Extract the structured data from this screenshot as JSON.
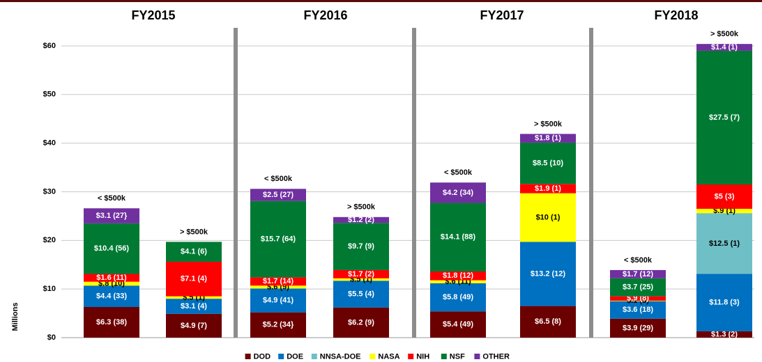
{
  "chart_data": {
    "type": "stacked-bar",
    "groups": [
      "FY2015",
      "FY2016",
      "FY2017",
      "FY2018"
    ],
    "categories": [
      "< $500k",
      "> $500k",
      "< $500k",
      "> $500k",
      "< $500k",
      "> $500k",
      "< $500k",
      "> $500k"
    ],
    "y_label": "Millions",
    "ylim": [
      0,
      63
    ],
    "yticks": [
      {
        "value": 0,
        "label": "$0"
      },
      {
        "value": 10,
        "label": "$10"
      },
      {
        "value": 20,
        "label": "$20"
      },
      {
        "value": 30,
        "label": "$30"
      },
      {
        "value": 40,
        "label": "$40"
      },
      {
        "value": 50,
        "label": "$50"
      },
      {
        "value": 60,
        "label": "$60"
      }
    ],
    "grid": true,
    "legend": "bottom",
    "series": [
      {
        "name": "DOD",
        "color": "#6b0000",
        "values": [
          6.3,
          4.9,
          5.2,
          6.2,
          5.4,
          6.5,
          3.9,
          1.3
        ],
        "value_labels": [
          "$6.3 (38)",
          "$4.9 (7)",
          "$5.2 (34}",
          "$6.2 (9)",
          "$5.4  (49)",
          "$6.5 (8)",
          "$3.9 (29)",
          "$1.3 (2)"
        ]
      },
      {
        "name": "DOE",
        "color": "#0070c0",
        "values": [
          4.4,
          3.1,
          4.9,
          5.5,
          5.8,
          13.2,
          3.6,
          11.8
        ],
        "value_labels": [
          "$4.4 (33)",
          "$3.1 (4)",
          "$4.9 (41)",
          "$5.5 (4)",
          "$5.8 (49)",
          "$13.2 (12)",
          "$3.6 (18)",
          "$11.8 (3)"
        ]
      },
      {
        "name": "NNSA-DOE",
        "color": "#6fbfc6",
        "values": [
          null,
          null,
          null,
          null,
          null,
          null,
          null,
          12.5
        ],
        "value_labels": [
          null,
          null,
          null,
          null,
          null,
          null,
          null,
          "$12.5 (1)"
        ]
      },
      {
        "name": "NASA",
        "color": "#ffff00",
        "values": [
          0.8,
          0.5,
          0.6,
          0.5,
          0.6,
          10,
          0.1,
          0.9
        ],
        "value_labels": [
          "$.8 (10)",
          "$.5 (1)",
          "$.6 (9)",
          "$.5 (1)",
          "$.6 (11)",
          "$10 (1)",
          "$.1 (3)",
          "$.9 (1)"
        ]
      },
      {
        "name": "NIH",
        "color": "#ff0000",
        "values": [
          1.6,
          7.1,
          1.7,
          1.7,
          1.8,
          1.9,
          0.9,
          5
        ],
        "value_labels": [
          "$1.6 (11)",
          "$7.1 (4)",
          "$1.7 (14)",
          "$1.7 (2)",
          "$1.8 (12)",
          "$1.9 (1)",
          "$.9 (8)",
          "$5 (3)"
        ]
      },
      {
        "name": "NSF",
        "color": "#007a33",
        "values": [
          10.4,
          4.1,
          15.7,
          9.7,
          14.1,
          8.5,
          3.7,
          27.5
        ],
        "value_labels": [
          "$10.4 (56)",
          "$4.1 (6)",
          "$15.7 (64)",
          "$9.7 (9)",
          "$14.1 (88)",
          "$8.5 (10)",
          "$3.7 (25)",
          "$27.5 (7)"
        ]
      },
      {
        "name": "OTHER",
        "color": "#7030a0",
        "values": [
          3.1,
          null,
          2.5,
          1.2,
          4.2,
          1.8,
          1.7,
          1.4
        ],
        "value_labels": [
          "$3.1 (27}",
          null,
          "$2.5 (27)",
          "$1.2 (2)",
          "$4.2 (34)",
          "$1.8 (1)",
          "$1.7 (12)",
          "$1.4 (1)"
        ]
      }
    ]
  }
}
